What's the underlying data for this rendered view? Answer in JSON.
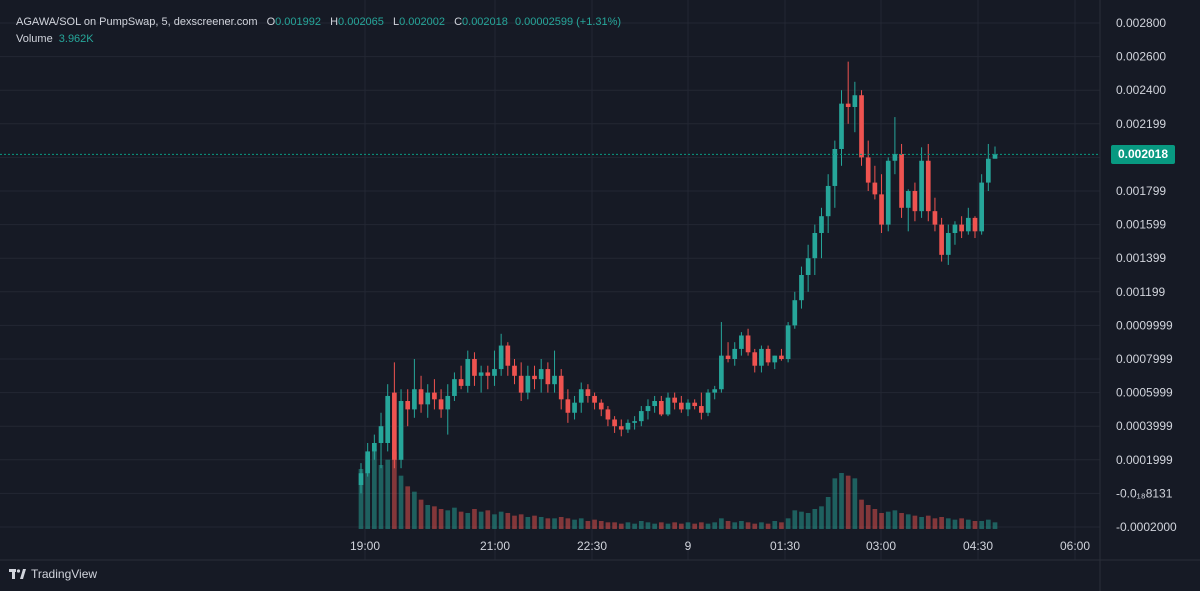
{
  "legend": {
    "pair": "AGAWA/SOL on PumpSwap, 5, dexscreener.com",
    "o_label": "O",
    "o_value": "0.001992",
    "h_label": "H",
    "h_value": "0.002065",
    "l_label": "L",
    "l_value": "0.002002",
    "c_label": "C",
    "c_value": "0.002018",
    "change": "0.00002599 (+1.31%)",
    "volume_label": "Volume",
    "volume_value": "3.962K"
  },
  "price_tag": "0.002018",
  "brand": "TradingView",
  "colors": {
    "up": "#26a69a",
    "down": "#ef5350",
    "background": "#161a25",
    "grid": "#232733",
    "text": "#d1d4dc",
    "last_price": "#089981"
  },
  "chart_data": {
    "type": "candlestick",
    "y_tick_labels": [
      "0.002800",
      "0.002600",
      "0.002400",
      "0.002199",
      "0.001999",
      "0.001799",
      "0.001599",
      "0.001399",
      "0.001199",
      "0.0009999",
      "0.0007999",
      "0.0005999",
      "0.0003999",
      "0.0001999",
      "-0.0₁₈8131",
      "-0.0002000"
    ],
    "x_tick_labels": [
      "19:00",
      "21:00",
      "22:30",
      "9",
      "01:30",
      "03:00",
      "04:30",
      "06:00"
    ],
    "ylim": [
      -0.0002,
      0.0028
    ],
    "last_price": 0.002018,
    "grid": true,
    "candles": [
      [
        5e-05,
        0.00018,
        0.0,
        0.00012
      ],
      [
        0.00012,
        0.0003,
        0.0001,
        0.00025
      ],
      [
        0.00025,
        0.00035,
        0.0002,
        0.0003
      ],
      [
        0.0003,
        0.00048,
        0.00015,
        0.0004
      ],
      [
        0.0003,
        0.00065,
        0.00025,
        0.00058
      ],
      [
        0.0006,
        0.00078,
        0.00015,
        0.0002
      ],
      [
        0.0002,
        0.00062,
        0.00015,
        0.00055
      ],
      [
        0.00055,
        0.00062,
        0.0004,
        0.0005
      ],
      [
        0.0005,
        0.0008,
        0.00045,
        0.00062
      ],
      [
        0.00062,
        0.0007,
        0.00048,
        0.00053
      ],
      [
        0.00053,
        0.00065,
        0.00045,
        0.0006
      ],
      [
        0.0006,
        0.00068,
        0.0005,
        0.00056
      ],
      [
        0.00056,
        0.00062,
        0.00045,
        0.0005
      ],
      [
        0.0005,
        0.00065,
        0.00035,
        0.00058
      ],
      [
        0.00058,
        0.00072,
        0.00055,
        0.00068
      ],
      [
        0.00068,
        0.00076,
        0.00062,
        0.00064
      ],
      [
        0.00064,
        0.00085,
        0.0006,
        0.0008
      ],
      [
        0.0008,
        0.00084,
        0.00064,
        0.0007
      ],
      [
        0.0007,
        0.00076,
        0.0006,
        0.00072
      ],
      [
        0.00072,
        0.00076,
        0.00062,
        0.0007
      ],
      [
        0.0007,
        0.00085,
        0.00064,
        0.00074
      ],
      [
        0.00074,
        0.00095,
        0.0007,
        0.00088
      ],
      [
        0.00088,
        0.0009,
        0.0007,
        0.00076
      ],
      [
        0.00076,
        0.0008,
        0.00065,
        0.0007
      ],
      [
        0.0007,
        0.00078,
        0.00055,
        0.0006
      ],
      [
        0.0006,
        0.00076,
        0.00056,
        0.0007
      ],
      [
        0.0007,
        0.00076,
        0.00062,
        0.00068
      ],
      [
        0.00068,
        0.0008,
        0.0006,
        0.00074
      ],
      [
        0.00074,
        0.00078,
        0.0006,
        0.00065
      ],
      [
        0.00065,
        0.00085,
        0.0006,
        0.0007
      ],
      [
        0.0007,
        0.00074,
        0.0005,
        0.00056
      ],
      [
        0.00056,
        0.00062,
        0.00042,
        0.00048
      ],
      [
        0.00048,
        0.00058,
        0.00044,
        0.00054
      ],
      [
        0.00054,
        0.00066,
        0.00048,
        0.00062
      ],
      [
        0.00062,
        0.00065,
        0.00054,
        0.00058
      ],
      [
        0.00058,
        0.0006,
        0.0005,
        0.00054
      ],
      [
        0.00054,
        0.00056,
        0.00046,
        0.0005
      ],
      [
        0.0005,
        0.00052,
        0.0004,
        0.00044
      ],
      [
        0.00044,
        0.00046,
        0.00036,
        0.0004
      ],
      [
        0.0004,
        0.00044,
        0.00034,
        0.00038
      ],
      [
        0.00038,
        0.00044,
        0.00036,
        0.00042
      ],
      [
        0.00042,
        0.00046,
        0.00038,
        0.00043
      ],
      [
        0.00043,
        0.00052,
        0.0004,
        0.00049
      ],
      [
        0.00049,
        0.00056,
        0.00044,
        0.00052
      ],
      [
        0.00052,
        0.00058,
        0.00048,
        0.00055
      ],
      [
        0.00055,
        0.00058,
        0.00046,
        0.00047
      ],
      [
        0.00047,
        0.0006,
        0.00046,
        0.00057
      ],
      [
        0.00057,
        0.0006,
        0.0005,
        0.00054
      ],
      [
        0.00054,
        0.00058,
        0.00048,
        0.0005
      ],
      [
        0.0005,
        0.00056,
        0.00046,
        0.00054
      ],
      [
        0.00054,
        0.00056,
        0.0005,
        0.00052
      ],
      [
        0.00052,
        0.0006,
        0.00044,
        0.00048
      ],
      [
        0.00048,
        0.00062,
        0.00046,
        0.0006
      ],
      [
        0.0006,
        0.00064,
        0.00056,
        0.00062
      ],
      [
        0.00062,
        0.00102,
        0.0006,
        0.00082
      ],
      [
        0.00082,
        0.0009,
        0.00078,
        0.0008
      ],
      [
        0.0008,
        0.0009,
        0.00076,
        0.00086
      ],
      [
        0.00086,
        0.00096,
        0.00082,
        0.00094
      ],
      [
        0.00094,
        0.00098,
        0.00082,
        0.00084
      ],
      [
        0.00084,
        0.00086,
        0.00072,
        0.00076
      ],
      [
        0.00076,
        0.00088,
        0.00072,
        0.00086
      ],
      [
        0.00086,
        0.00088,
        0.00076,
        0.00078
      ],
      [
        0.00078,
        0.00082,
        0.00074,
        0.00082
      ],
      [
        0.00082,
        0.00086,
        0.00079,
        0.0008
      ],
      [
        0.0008,
        0.00102,
        0.00078,
        0.001
      ],
      [
        0.001,
        0.0012,
        0.00098,
        0.00115
      ],
      [
        0.00115,
        0.00135,
        0.0011,
        0.0013
      ],
      [
        0.0013,
        0.00148,
        0.0012,
        0.0014
      ],
      [
        0.0014,
        0.0016,
        0.0013,
        0.00155
      ],
      [
        0.00155,
        0.0017,
        0.0014,
        0.00165
      ],
      [
        0.00165,
        0.0019,
        0.00155,
        0.00183
      ],
      [
        0.00183,
        0.0021,
        0.0017,
        0.00205
      ],
      [
        0.00205,
        0.0024,
        0.00195,
        0.00232
      ],
      [
        0.00232,
        0.00257,
        0.0022,
        0.0023
      ],
      [
        0.0023,
        0.00245,
        0.00215,
        0.00237
      ],
      [
        0.00237,
        0.0024,
        0.00195,
        0.002
      ],
      [
        0.002,
        0.0021,
        0.0018,
        0.00185
      ],
      [
        0.00185,
        0.00195,
        0.00175,
        0.00178
      ],
      [
        0.00178,
        0.0019,
        0.00155,
        0.0016
      ],
      [
        0.0016,
        0.002,
        0.00156,
        0.00198
      ],
      [
        0.00198,
        0.00224,
        0.0019,
        0.00202
      ],
      [
        0.00202,
        0.00208,
        0.00164,
        0.0017
      ],
      [
        0.0017,
        0.00181,
        0.00156,
        0.0018
      ],
      [
        0.0018,
        0.00185,
        0.00162,
        0.00168
      ],
      [
        0.00168,
        0.00206,
        0.00164,
        0.00198
      ],
      [
        0.00198,
        0.00208,
        0.00162,
        0.00168
      ],
      [
        0.00168,
        0.00176,
        0.00156,
        0.0016
      ],
      [
        0.0016,
        0.00164,
        0.00138,
        0.00142
      ],
      [
        0.00142,
        0.0016,
        0.00136,
        0.00155
      ],
      [
        0.00155,
        0.00162,
        0.00148,
        0.0016
      ],
      [
        0.0016,
        0.00165,
        0.00152,
        0.00156
      ],
      [
        0.00156,
        0.0017,
        0.00154,
        0.00164
      ],
      [
        0.00164,
        0.00165,
        0.00152,
        0.00156
      ],
      [
        0.00156,
        0.0019,
        0.00154,
        0.00185
      ],
      [
        0.00185,
        0.00208,
        0.0018,
        0.001992
      ],
      [
        0.001992,
        0.002065,
        0.002002,
        0.002018
      ]
    ],
    "volume": [
      45,
      55,
      60,
      48,
      52,
      58,
      40,
      32,
      28,
      22,
      18,
      17,
      15,
      14,
      16,
      13,
      12,
      15,
      13,
      14,
      11,
      13,
      12,
      10,
      11,
      9,
      10,
      9,
      8,
      8,
      9,
      8,
      7,
      8,
      6,
      7,
      6,
      5,
      5,
      4,
      5,
      4,
      6,
      5,
      4,
      5,
      4,
      5,
      4,
      5,
      4,
      5,
      4,
      5,
      8,
      6,
      5,
      6,
      5,
      4,
      5,
      4,
      6,
      5,
      8,
      14,
      13,
      12,
      15,
      17,
      24,
      38,
      42,
      40,
      38,
      22,
      18,
      15,
      12,
      13,
      14,
      12,
      11,
      10,
      9,
      10,
      8,
      9,
      8,
      7,
      8,
      7,
      6,
      6,
      7,
      5
    ]
  }
}
